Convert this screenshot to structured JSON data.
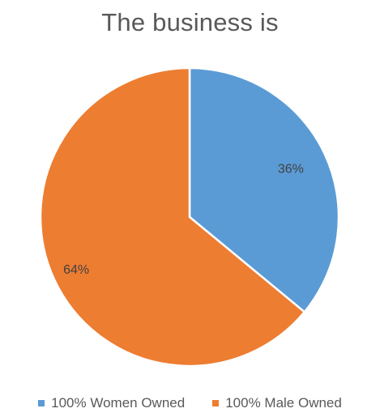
{
  "chart_data": {
    "type": "pie",
    "title": "The business is",
    "categories": [
      "100% Women Owned",
      "100% Male Owned"
    ],
    "values": [
      36,
      64
    ],
    "data_labels": [
      "36%",
      "64%"
    ],
    "colors": [
      "#5B9BD5",
      "#ED7D31"
    ],
    "legend_position": "bottom"
  }
}
